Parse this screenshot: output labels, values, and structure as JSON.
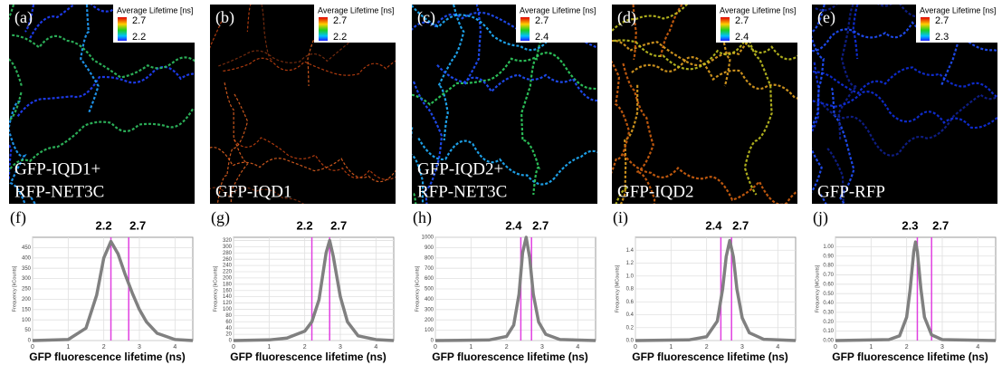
{
  "images": [
    {
      "label": "(a)",
      "colorbar_title": "Average Lifetime [ns]",
      "colorbar_max": "2.7",
      "colorbar_min": "2.2",
      "caption": [
        "GFP-IQD1+",
        "RFP-NET3C"
      ]
    },
    {
      "label": "(b)",
      "colorbar_title": "Average Lifetime [ns]",
      "colorbar_max": "2.7",
      "colorbar_min": "2.2",
      "caption": [
        "GFP-IQD1"
      ]
    },
    {
      "label": "(c)",
      "colorbar_title": "Average Lifetime [ns]",
      "colorbar_max": "2.7",
      "colorbar_min": "2.4",
      "caption": [
        "GFP-IQD2+",
        "RFP-NET3C"
      ]
    },
    {
      "label": "(d)",
      "colorbar_title": "Average Lifetime [ns]",
      "colorbar_max": "2.7",
      "colorbar_min": "2.4",
      "caption": [
        "GFP-IQD2"
      ]
    },
    {
      "label": "(e)",
      "colorbar_title": "Average Lifetime [ns]",
      "colorbar_max": "2.7",
      "colorbar_min": "2.3",
      "caption": [
        "GFP-RFP"
      ]
    }
  ],
  "chart_data": [
    {
      "type": "line",
      "panel_label": "(f)",
      "x_label": "GFP fluorescence lifetime (ns)",
      "y_label": "Frequency [kCounts]",
      "vlines": [
        2.2,
        2.7
      ],
      "vline_color": "#e040e0",
      "color": "#808080",
      "grid": true,
      "x": [
        0,
        1,
        1.5,
        1.8,
        2,
        2.2,
        2.4,
        2.6,
        2.8,
        3,
        3.2,
        3.5,
        4,
        4.5
      ],
      "values": [
        0,
        5,
        60,
        220,
        400,
        480,
        420,
        320,
        230,
        150,
        90,
        35,
        5,
        0
      ],
      "xlim": [
        0,
        4.5
      ],
      "xticks": [
        0,
        1,
        2,
        3,
        4
      ],
      "ylim": [
        0,
        500
      ],
      "yticks": [
        0,
        50,
        100,
        150,
        200,
        250,
        300,
        350,
        400,
        450
      ]
    },
    {
      "type": "line",
      "panel_label": "(g)",
      "x_label": "GFP fluorescence lifetime (ns)",
      "y_label": "Frequency [kCounts]",
      "vlines": [
        2.2,
        2.7
      ],
      "vline_color": "#e040e0",
      "color": "#808080",
      "grid": true,
      "x": [
        0,
        1,
        1.5,
        2,
        2.2,
        2.4,
        2.6,
        2.7,
        2.8,
        3,
        3.2,
        3.5,
        4,
        4.5
      ],
      "values": [
        0,
        2,
        8,
        30,
        60,
        130,
        280,
        320,
        270,
        140,
        60,
        15,
        3,
        0
      ],
      "xlim": [
        0,
        4.5
      ],
      "xticks": [
        0,
        1,
        2,
        3,
        4
      ],
      "ylim": [
        0,
        330
      ],
      "yticks": [
        0,
        20,
        40,
        60,
        80,
        100,
        120,
        140,
        160,
        180,
        200,
        220,
        240,
        260,
        280,
        300,
        320
      ]
    },
    {
      "type": "line",
      "panel_label": "(h)",
      "x_label": "GFP fluorescence lifetime (ns)",
      "y_label": "Frequency [kCounts]",
      "vlines": [
        2.4,
        2.7
      ],
      "vline_color": "#e040e0",
      "color": "#808080",
      "grid": true,
      "x": [
        0,
        1.5,
        2,
        2.2,
        2.35,
        2.45,
        2.55,
        2.65,
        2.75,
        2.9,
        3.1,
        3.5,
        4.5
      ],
      "values": [
        0,
        5,
        40,
        150,
        450,
        850,
        1000,
        800,
        450,
        180,
        60,
        10,
        0
      ],
      "xlim": [
        0,
        4.5
      ],
      "xticks": [
        0,
        1,
        2,
        3,
        4
      ],
      "ylim": [
        0,
        1000
      ],
      "yticks": [
        0,
        100,
        200,
        300,
        400,
        500,
        600,
        700,
        800,
        900,
        1000
      ]
    },
    {
      "type": "line",
      "panel_label": "(i)",
      "x_label": "GFP fluorescence lifetime (ns)",
      "y_label": "Frequency [MCounts]",
      "vlines": [
        2.4,
        2.7
      ],
      "vline_color": "#e040e0",
      "color": "#808080",
      "grid": true,
      "x": [
        0,
        1.5,
        2,
        2.3,
        2.45,
        2.55,
        2.65,
        2.75,
        2.85,
        3,
        3.2,
        3.6,
        4.5
      ],
      "values": [
        0,
        0.01,
        0.06,
        0.3,
        0.8,
        1.3,
        1.55,
        1.3,
        0.8,
        0.35,
        0.12,
        0.02,
        0
      ],
      "xlim": [
        0,
        4.5
      ],
      "xticks": [
        0,
        1,
        2,
        3,
        4
      ],
      "ylim": [
        0,
        1.6
      ],
      "yticks": [
        {
          "value": 0,
          "label": "0.0"
        },
        0.2,
        0.4,
        0.6,
        0.8,
        {
          "value": 1,
          "label": "1.0"
        },
        1.2,
        1.4
      ]
    },
    {
      "type": "line",
      "panel_label": "(j)",
      "x_label": "GFP fluorescence lifetime (ns)",
      "y_label": "Frequency [MCounts]",
      "vlines": [
        2.3,
        2.7
      ],
      "vline_color": "#e040e0",
      "color": "#808080",
      "grid": true,
      "x": [
        0,
        1.5,
        1.8,
        2,
        2.1,
        2.2,
        2.25,
        2.3,
        2.4,
        2.5,
        2.7,
        3,
        4.5
      ],
      "values": [
        0,
        0.01,
        0.05,
        0.25,
        0.55,
        0.95,
        1.05,
        0.95,
        0.55,
        0.25,
        0.06,
        0.01,
        0
      ],
      "xlim": [
        0,
        4.5
      ],
      "xticks": [
        0,
        1,
        2,
        3,
        4
      ],
      "ylim": [
        0,
        1.1
      ],
      "yticks": [
        {
          "value": 0,
          "label": "0.00"
        },
        {
          "value": 0.1,
          "label": "0.10"
        },
        {
          "value": 0.2,
          "label": "0.20"
        },
        {
          "value": 0.3,
          "label": "0.30"
        },
        {
          "value": 0.4,
          "label": "0.40"
        },
        {
          "value": 0.5,
          "label": "0.50"
        },
        {
          "value": 0.6,
          "label": "0.60"
        },
        {
          "value": 0.7,
          "label": "0.70"
        },
        {
          "value": 0.8,
          "label": "0.80"
        },
        {
          "value": 0.9,
          "label": "0.90"
        },
        {
          "value": 1,
          "label": "1.00"
        }
      ]
    }
  ]
}
